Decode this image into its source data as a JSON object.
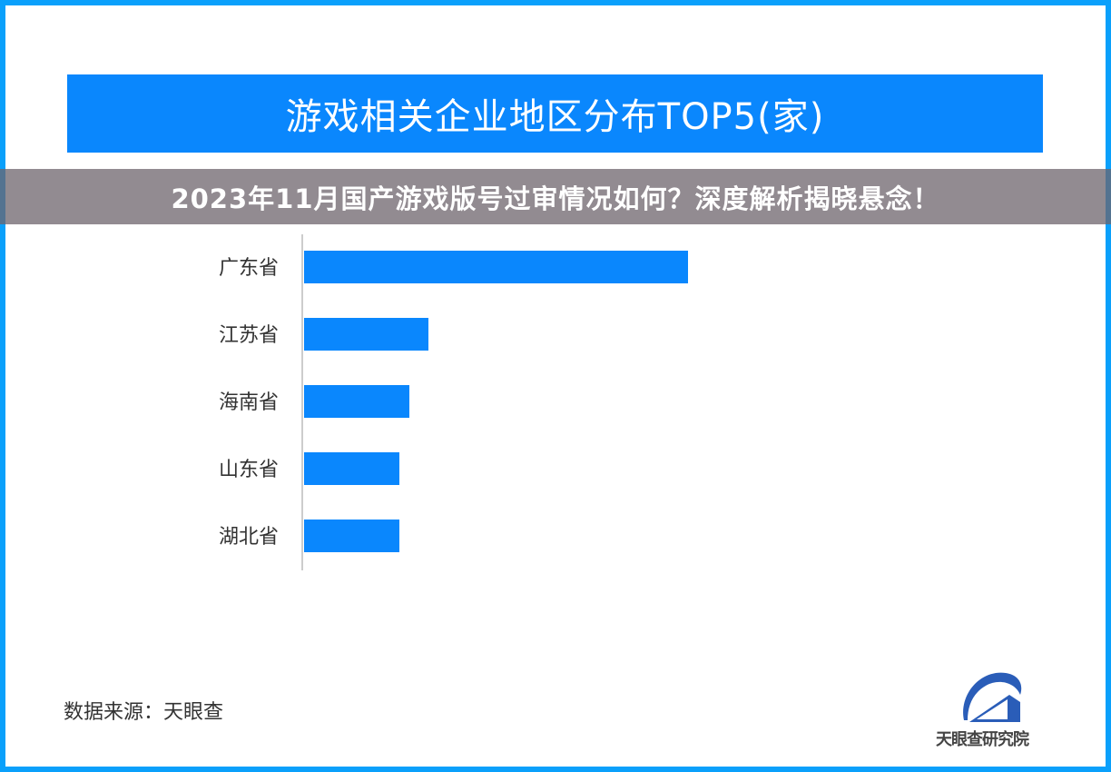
{
  "chart_data": {
    "type": "bar",
    "orientation": "horizontal",
    "title": "游戏相关企业地区分布TOP5(家)",
    "categories": [
      "广东省",
      "江苏省",
      "海南省",
      "山东省",
      "湖北省"
    ],
    "values": [
      423,
      137,
      116,
      105,
      105
    ],
    "xlim": [
      0,
      450
    ],
    "grid": false,
    "bar_color": "#0a87fd",
    "title_bg": "#0a87fd"
  },
  "source": "数据来源：天眼查",
  "logo_text": "天眼查研究院",
  "overlay_banner": "2023年11月国产游戏版号过审情况如何？深度解析揭晓悬念！",
  "colors": {
    "frame": "#0aa0fb",
    "logo": "#2a5db8"
  }
}
